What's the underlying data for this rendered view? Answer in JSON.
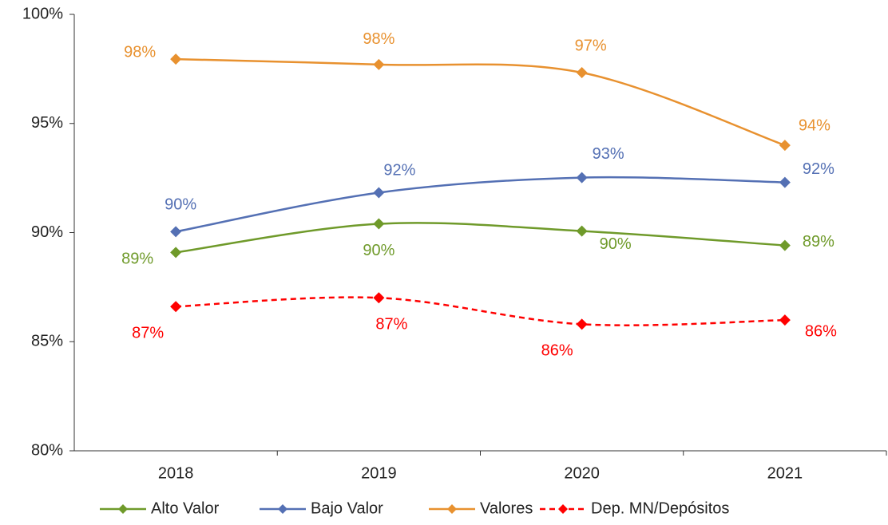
{
  "chart_data": {
    "type": "line",
    "categories": [
      "2018",
      "2019",
      "2020",
      "2021"
    ],
    "ylim": [
      80,
      100
    ],
    "yticks": [
      {
        "value": 80,
        "label": "80%"
      },
      {
        "value": 85,
        "label": "85%"
      },
      {
        "value": 90,
        "label": "90%"
      },
      {
        "value": 95,
        "label": "95%"
      },
      {
        "value": 100,
        "label": "100%"
      }
    ],
    "series": [
      {
        "name": "Alto Valor",
        "color": "#6f9a2a",
        "values": [
          89.09,
          90.4,
          90.07,
          89.41
        ],
        "value_labels": [
          "89%",
          "90%",
          "90%",
          "89%"
        ]
      },
      {
        "name": "Bajo Valor",
        "color": "#5470b4",
        "values": [
          90.04,
          91.83,
          92.52,
          92.3
        ],
        "value_labels": [
          "90%",
          "92%",
          "93%",
          "92%"
        ]
      },
      {
        "name": "Valores",
        "color": "#e8912f",
        "values": [
          97.95,
          97.7,
          97.33,
          94.0
        ],
        "value_labels": [
          "98%",
          "98%",
          "97%",
          "94%"
        ]
      },
      {
        "name": "Dep. MN/Depósitos",
        "color": "#ff0000",
        "dashed": true,
        "values": [
          86.61,
          87.01,
          85.8,
          85.99
        ],
        "value_labels": [
          "87%",
          "87%",
          "86%",
          "86%"
        ]
      }
    ]
  }
}
